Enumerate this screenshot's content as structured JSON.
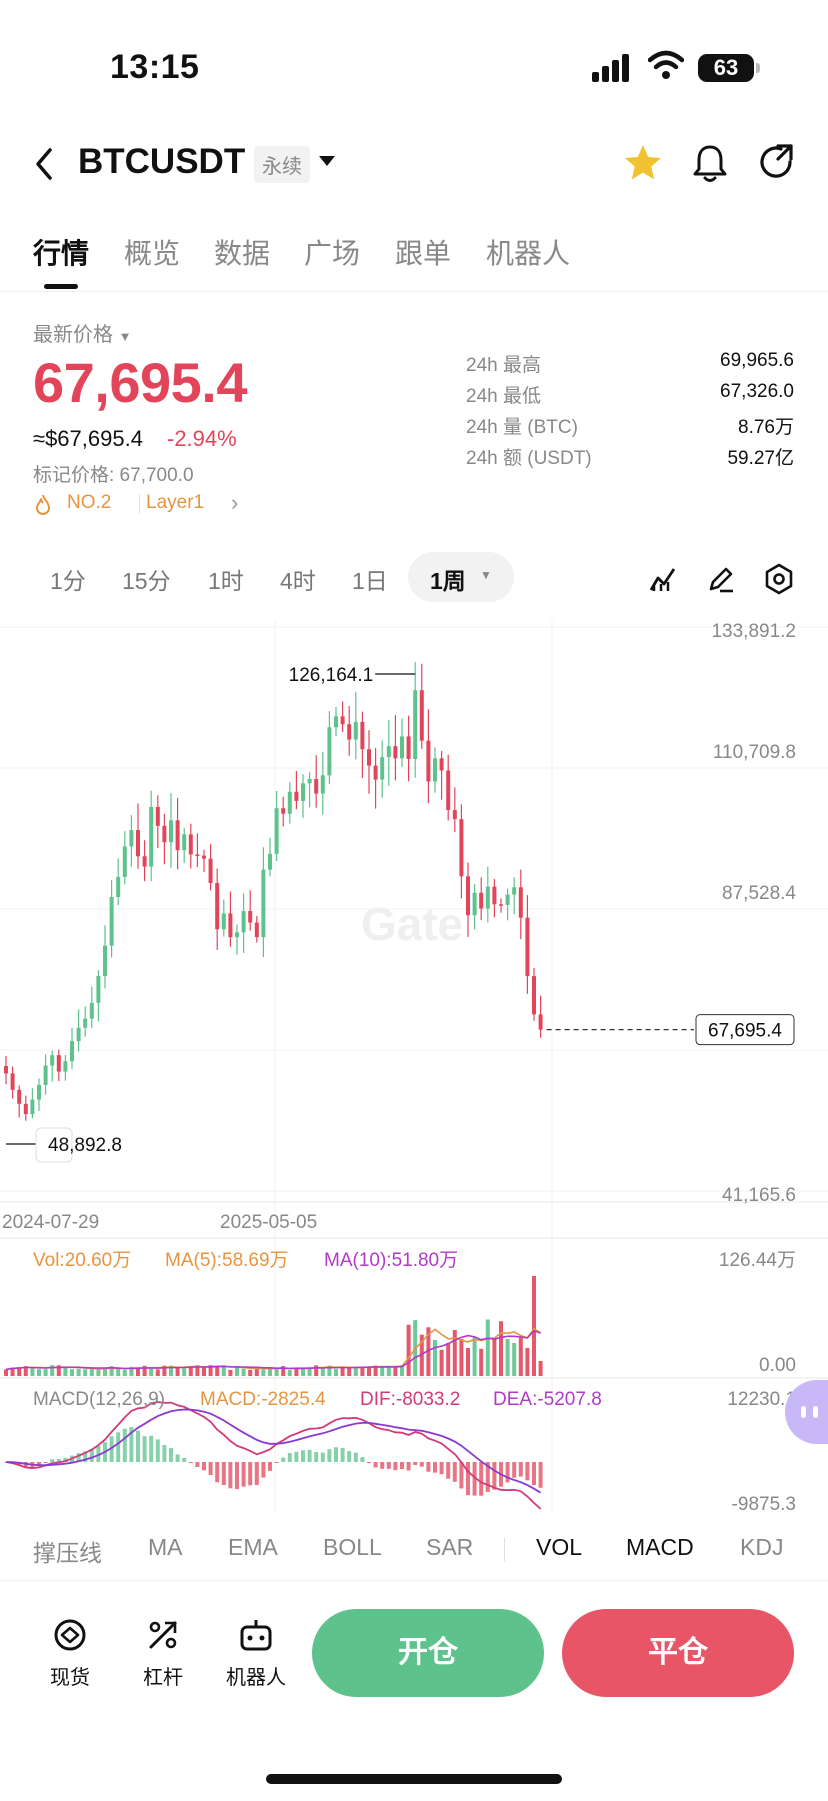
{
  "status": {
    "time": "13:15",
    "battery": "63"
  },
  "header": {
    "symbol": "BTCUSDT",
    "contract_type": "永续"
  },
  "tabs": [
    "行情",
    "概览",
    "数据",
    "广场",
    "跟单",
    "机器人"
  ],
  "price_panel": {
    "latest_label": "最新价格",
    "last_price": "67,695.4",
    "usd_price": "≈$67,695.4",
    "change_pct": "-2.94%",
    "mark_price": "标记价格: 67,700.0",
    "rank": "NO.2",
    "category": "Layer1"
  },
  "stats": [
    {
      "label": "24h  最高",
      "value": "69,965.6"
    },
    {
      "label": "24h  最低",
      "value": "67,326.0"
    },
    {
      "label": "24h  量 (BTC)",
      "value": "8.76万"
    },
    {
      "label": "24h  额 (USDT)",
      "value": "59.27亿"
    }
  ],
  "timeframes": [
    "1分",
    "15分",
    "1时",
    "4时",
    "1日"
  ],
  "selected_timeframe": "1周",
  "colors": {
    "up": "#5ec28c",
    "down": "#e2455a",
    "accent_yellow": "#f2c230",
    "ma5": "#e69440",
    "ma10": "#b23ac9"
  },
  "chart_data": {
    "type": "candlestick",
    "interval": "1周",
    "y_axis": [
      "133,891.2",
      "110,709.8",
      "87,528.4",
      "41,165.6"
    ],
    "ylim": [
      41165.6,
      133891.2
    ],
    "x_axis": [
      "2024-07-29",
      "2025-05-05"
    ],
    "high_marker": "126,164.1",
    "low_marker": "48,892.8",
    "last_price_label": "67,695.4",
    "last_price": 67695.4,
    "closes": [
      60500,
      57800,
      55500,
      53800,
      56200,
      58600,
      61800,
      63500,
      60800,
      62500,
      65800,
      68000,
      69500,
      72100,
      76500,
      81500,
      89500,
      92800,
      97800,
      100500,
      96200,
      94500,
      104300,
      101200,
      98500,
      102100,
      97200,
      99800,
      96500,
      96300,
      95800,
      91800,
      84200,
      86800,
      82900,
      83700,
      87200,
      85300,
      82900,
      94000,
      96600,
      104100,
      103200,
      106800,
      105300,
      108200,
      108900,
      106500,
      109500,
      117400,
      119200,
      117900,
      115400,
      118300,
      113800,
      111100,
      108800,
      112500,
      114300,
      112300,
      115900,
      112200,
      123500,
      115200,
      108500,
      112300,
      110300,
      103800,
      102300,
      92900,
      86500,
      90200,
      87600,
      91200,
      88300,
      88200,
      89900,
      91100,
      86100,
      76500,
      70200,
      67695.4
    ],
    "volume": {
      "vol": "Vol:20.60万",
      "ma5": "MA(5):58.69万",
      "ma10": "MA(10):51.80万",
      "max": "126.44万",
      "min": "0.00"
    },
    "macd": {
      "label": "MACD(12,26,9)",
      "macd": "MACD:-2825.4",
      "dif": "DIF:-8033.2",
      "dea": "DEA:-5207.8",
      "max": "12230.1",
      "min": "-9875.3"
    }
  },
  "indicators": [
    "撑压线",
    "MA",
    "EMA",
    "BOLL",
    "SAR",
    "VOL",
    "MACD",
    "KDJ"
  ],
  "bottom_nav": [
    {
      "label": "现货",
      "icon": "spot-icon"
    },
    {
      "label": "杠杆",
      "icon": "leverage-icon"
    },
    {
      "label": "机器人",
      "icon": "robot-icon"
    }
  ],
  "actions": {
    "open": "开仓",
    "close": "平仓"
  }
}
